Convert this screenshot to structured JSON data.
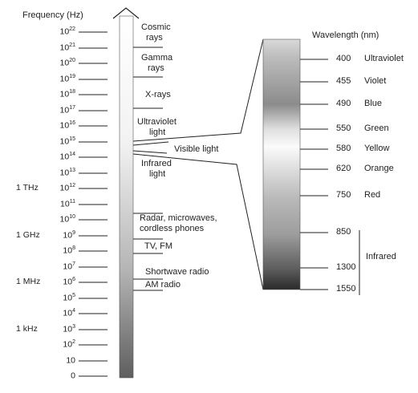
{
  "headers": {
    "frequency": "Frequency (Hz)",
    "wavelength": "Wavelength (nm)"
  },
  "frequency_scale": [
    {
      "label": "10",
      "sup": "22",
      "unit": ""
    },
    {
      "label": "10",
      "sup": "21",
      "unit": ""
    },
    {
      "label": "10",
      "sup": "20",
      "unit": ""
    },
    {
      "label": "10",
      "sup": "19",
      "unit": ""
    },
    {
      "label": "10",
      "sup": "18",
      "unit": ""
    },
    {
      "label": "10",
      "sup": "17",
      "unit": ""
    },
    {
      "label": "10",
      "sup": "16",
      "unit": ""
    },
    {
      "label": "10",
      "sup": "15",
      "unit": ""
    },
    {
      "label": "10",
      "sup": "14",
      "unit": ""
    },
    {
      "label": "10",
      "sup": "13",
      "unit": ""
    },
    {
      "label": "10",
      "sup": "12",
      "unit": "1 THz"
    },
    {
      "label": "10",
      "sup": "11",
      "unit": ""
    },
    {
      "label": "10",
      "sup": "10",
      "unit": ""
    },
    {
      "label": "10",
      "sup": "9",
      "unit": "1 GHz"
    },
    {
      "label": "10",
      "sup": "8",
      "unit": ""
    },
    {
      "label": "10",
      "sup": "7",
      "unit": ""
    },
    {
      "label": "10",
      "sup": "6",
      "unit": "1 MHz"
    },
    {
      "label": "10",
      "sup": "5",
      "unit": ""
    },
    {
      "label": "10",
      "sup": "4",
      "unit": ""
    },
    {
      "label": "10",
      "sup": "3",
      "unit": "1 kHz"
    },
    {
      "label": "10",
      "sup": "2",
      "unit": ""
    },
    {
      "label": "10",
      "sup": "",
      "unit": ""
    },
    {
      "label": "0",
      "sup": "",
      "unit": ""
    }
  ],
  "bands": [
    {
      "name": "cosmic-rays",
      "lines": [
        "Cosmic",
        "rays"
      ]
    },
    {
      "name": "gamma-rays",
      "lines": [
        "Gamma",
        "rays"
      ]
    },
    {
      "name": "x-rays",
      "lines": [
        "X-rays"
      ]
    },
    {
      "name": "ultraviolet",
      "lines": [
        "Ultraviolet",
        "light"
      ]
    },
    {
      "name": "visible",
      "lines": [
        "Visible light"
      ]
    },
    {
      "name": "infrared",
      "lines": [
        "Infrared",
        "light"
      ]
    },
    {
      "name": "radar",
      "lines": [
        "Radar, microwaves,",
        "cordless phones"
      ]
    },
    {
      "name": "tv-fm",
      "lines": [
        "TV, FM"
      ]
    },
    {
      "name": "shortwave",
      "lines": [
        "Shortwave radio"
      ]
    },
    {
      "name": "am-radio",
      "lines": [
        "AM radio"
      ]
    }
  ],
  "wavelengths": [
    {
      "nm": "400",
      "color": "Ultraviolet"
    },
    {
      "nm": "455",
      "color": "Violet"
    },
    {
      "nm": "490",
      "color": "Blue"
    },
    {
      "nm": "550",
      "color": "Green"
    },
    {
      "nm": "580",
      "color": "Yellow"
    },
    {
      "nm": "620",
      "color": "Orange"
    },
    {
      "nm": "750",
      "color": "Red"
    },
    {
      "nm": "850",
      "color": ""
    },
    {
      "nm": "1300",
      "color": ""
    },
    {
      "nm": "1550",
      "color": ""
    }
  ],
  "infrared_bracket_label": "Infrared",
  "colors": {
    "line": "#222222",
    "bar_top": "#ffffff",
    "bar_bottom": "#5a5a5a"
  }
}
